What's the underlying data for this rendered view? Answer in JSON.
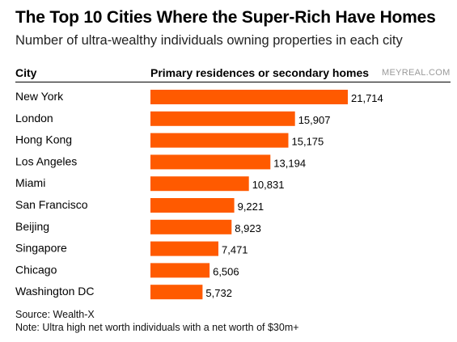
{
  "title": "The Top 10 Cities Where the Super-Rich Have Homes",
  "subtitle": "Number of ultra-wealthy individuals owning properties in each city",
  "watermark": "MEYREAL.COM",
  "colors": {
    "bar": "#ff5a00",
    "text": "#000000"
  },
  "chart_data": {
    "type": "bar",
    "orientation": "horizontal",
    "category_header": "City",
    "value_header": "Primary residences or secondary homes",
    "categories": [
      "New York",
      "London",
      "Hong Kong",
      "Los Angeles",
      "Miami",
      "San Francisco",
      "Beijing",
      "Singapore",
      "Chicago",
      "Washington DC"
    ],
    "values": [
      21714,
      15907,
      15175,
      13194,
      10831,
      9221,
      8923,
      7471,
      6506,
      5732
    ],
    "value_labels": [
      "21,714",
      "15,907",
      "15,175",
      "13,194",
      "10,831",
      "9,221",
      "8,923",
      "7,471",
      "6,506",
      "5,732"
    ],
    "xlim": [
      0,
      21714
    ]
  },
  "footer": {
    "source": "Source: Wealth-X",
    "note": "Note: Ultra high net worth individuals with a net worth of $30m+"
  }
}
